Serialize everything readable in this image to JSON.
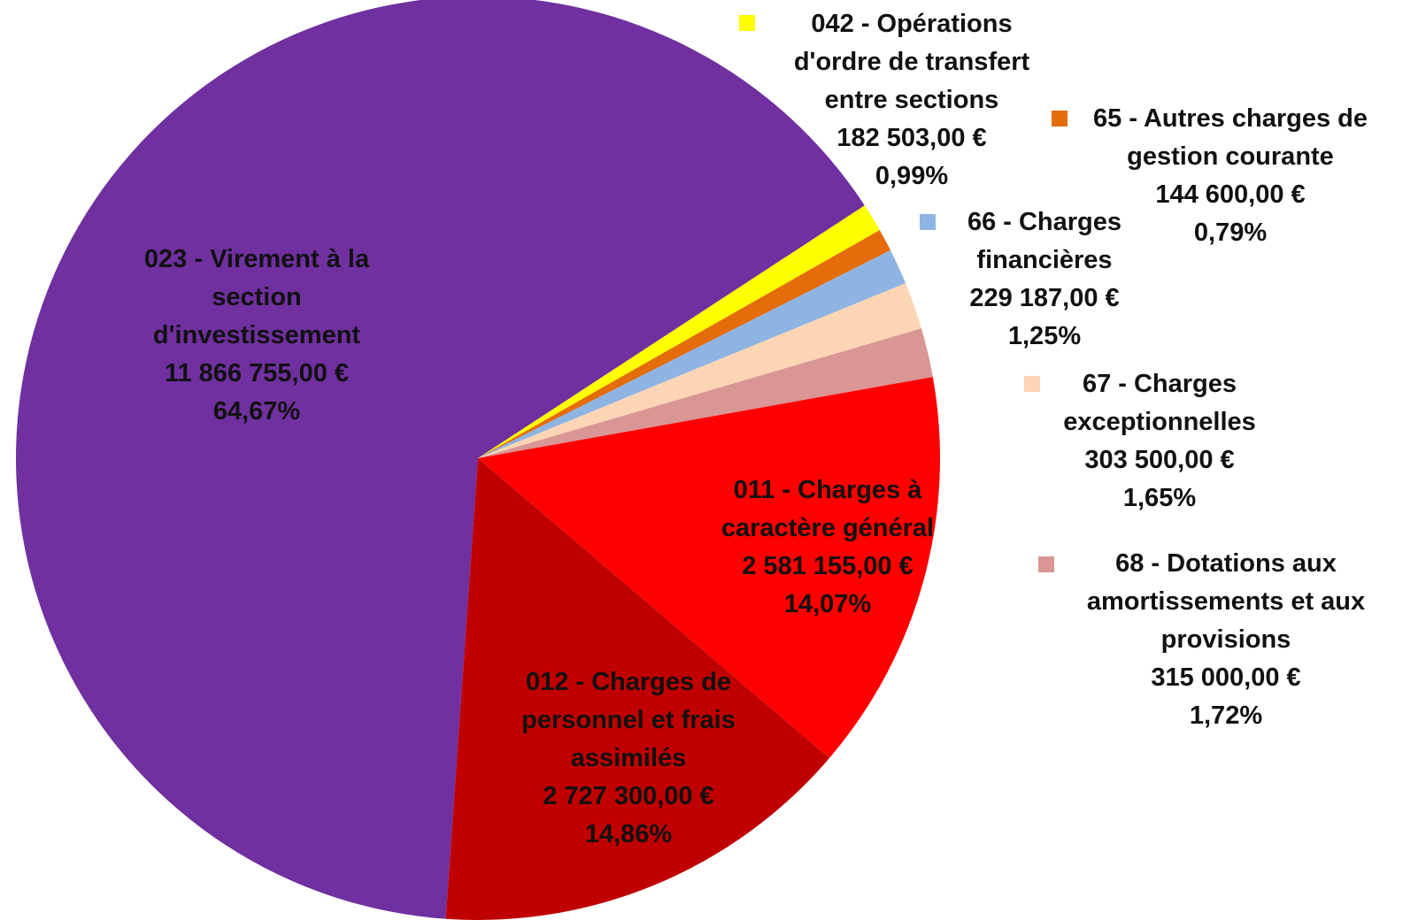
{
  "chart_data": {
    "type": "pie",
    "categories": [
      "023 - Virement à la section d'investissement",
      "042 - Opérations d'ordre de transfert entre sections",
      "65 - Autres charges de gestion courante",
      "66 - Charges financières",
      "67 - Charges exceptionnelles",
      "68 - Dotations aux amortissements et aux provisions",
      "011 - Charges à caractère général",
      "012 - Charges de personnel et frais assimilés"
    ],
    "values": [
      11866755,
      182503,
      144600,
      229187,
      303500,
      315000,
      2581155,
      2727300
    ],
    "value_labels": [
      "11 866 755,00 €",
      "182 503,00 €",
      "144 600,00 €",
      "229 187,00 €",
      "303 500,00 €",
      "315 000,00 €",
      "2 581 155,00 €",
      "2 727 300,00 €"
    ],
    "percents": [
      64.67,
      0.99,
      0.79,
      1.25,
      1.65,
      1.72,
      14.07,
      14.86
    ],
    "percent_labels": [
      "64,67%",
      "0,99%",
      "0,79%",
      "1,25%",
      "1,65%",
      "1,72%",
      "14,07%",
      "14,86%"
    ],
    "colors": [
      "#7030a0",
      "#ffff00",
      "#e46c0a",
      "#8db4e2",
      "#fcd5b5",
      "#d99694",
      "#ff0000",
      "#c00000"
    ]
  }
}
